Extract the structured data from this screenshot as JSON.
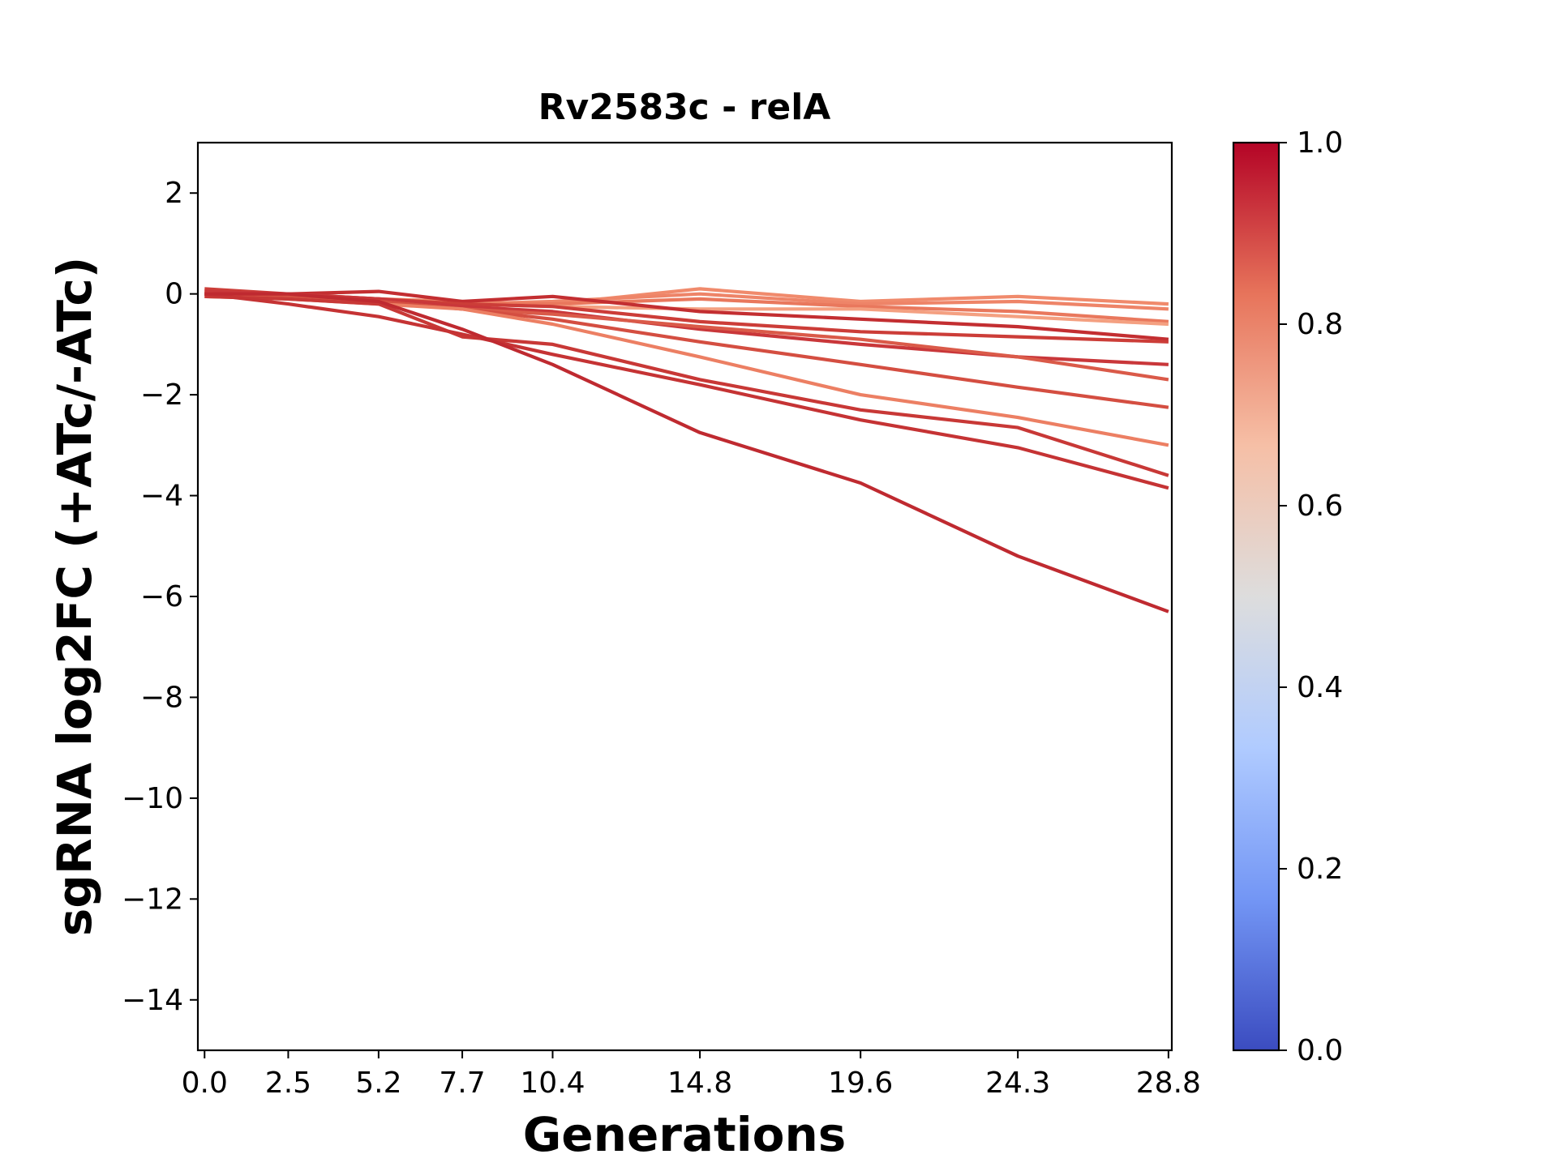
{
  "chart_data": {
    "type": "line",
    "title": "Rv2583c - relA",
    "xlabel": "Generations",
    "ylabel": "sgRNA log2FC (+ATc/-ATc)",
    "x": [
      0.0,
      2.5,
      5.2,
      7.7,
      10.4,
      14.8,
      19.6,
      24.3,
      28.8
    ],
    "x_tick_labels": [
      "0.0",
      "2.5",
      "5.2",
      "7.7",
      "10.4",
      "14.8",
      "19.6",
      "24.3",
      "28.8"
    ],
    "xlim": [
      -0.2,
      28.9
    ],
    "ylim": [
      -15,
      3
    ],
    "y_ticks": [
      2,
      0,
      -2,
      -4,
      -6,
      -8,
      -10,
      -12,
      -14
    ],
    "y_tick_labels": [
      "2",
      "0",
      "−2",
      "−4",
      "−6",
      "−8",
      "−10",
      "−12",
      "−14"
    ],
    "grid": false,
    "colorbar": {
      "colormap": "coolwarm",
      "min": 0.0,
      "max": 1.0,
      "ticks": [
        0.0,
        0.2,
        0.4,
        0.6,
        0.8,
        1.0
      ],
      "tick_labels": [
        "0.0",
        "0.2",
        "0.4",
        "0.6",
        "0.8",
        "1.0"
      ],
      "colors": [
        "#3b4cc0",
        "#7396f5",
        "#b0cbff",
        "#dddddd",
        "#f6bfa6",
        "#e7745b",
        "#b40426"
      ]
    },
    "series": [
      {
        "values": [
          0.02,
          -0.05,
          -0.1,
          -0.15,
          -0.2,
          0.1,
          -0.15,
          -0.05,
          -0.2
        ],
        "color": "#f08a6c"
      },
      {
        "values": [
          0.05,
          -0.1,
          -0.15,
          -0.2,
          -0.15,
          0.0,
          -0.2,
          -0.15,
          -0.3
        ],
        "color": "#ee8468"
      },
      {
        "values": [
          0.0,
          -0.05,
          -0.1,
          -0.2,
          -0.2,
          -0.1,
          -0.25,
          -0.35,
          -0.55
        ],
        "color": "#e9785d"
      },
      {
        "values": [
          0.05,
          -0.05,
          -0.15,
          -0.2,
          -0.25,
          -0.3,
          -0.3,
          -0.45,
          -0.6
        ],
        "color": "#f4a081"
      },
      {
        "values": [
          0.0,
          0.0,
          0.05,
          -0.15,
          -0.05,
          -0.35,
          -0.5,
          -0.65,
          -0.9
        ],
        "color": "#c32e31"
      },
      {
        "values": [
          0.1,
          0.0,
          -0.1,
          -0.2,
          -0.25,
          -0.55,
          -0.75,
          -0.85,
          -0.95
        ],
        "color": "#cc3d38"
      },
      {
        "values": [
          0.05,
          0.0,
          -0.1,
          -0.25,
          -0.35,
          -0.7,
          -1.0,
          -1.25,
          -1.4
        ],
        "color": "#c9373a"
      },
      {
        "values": [
          0.0,
          -0.05,
          -0.15,
          -0.3,
          -0.4,
          -0.65,
          -0.9,
          -1.25,
          -1.7
        ],
        "color": "#da5a49"
      },
      {
        "values": [
          0.0,
          -0.05,
          -0.15,
          -0.3,
          -0.5,
          -0.95,
          -1.4,
          -1.85,
          -2.25
        ],
        "color": "#d44e41"
      },
      {
        "values": [
          -0.05,
          -0.1,
          -0.2,
          -0.3,
          -0.6,
          -1.25,
          -2.0,
          -2.45,
          -3.0
        ],
        "color": "#ec7f63"
      },
      {
        "values": [
          -0.05,
          -0.1,
          -0.2,
          -0.85,
          -1.0,
          -1.7,
          -2.3,
          -2.65,
          -3.6
        ],
        "color": "#c83836"
      },
      {
        "values": [
          0.0,
          -0.2,
          -0.45,
          -0.8,
          -1.2,
          -1.8,
          -2.5,
          -3.05,
          -3.85
        ],
        "color": "#c53334"
      },
      {
        "values": [
          0.0,
          0.0,
          -0.15,
          -0.7,
          -1.4,
          -2.75,
          -3.75,
          -5.2,
          -6.3
        ],
        "color": "#bf2a30"
      }
    ]
  }
}
